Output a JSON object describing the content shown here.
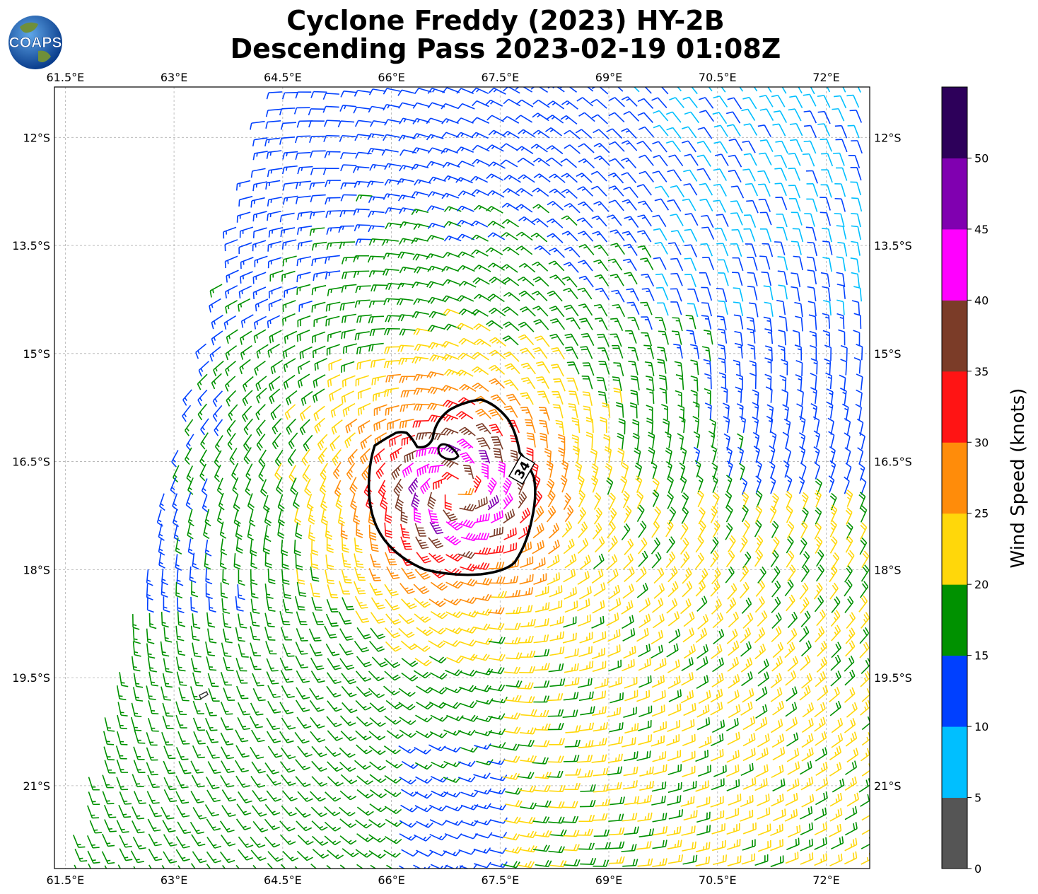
{
  "title": {
    "line1": "Cyclone Freddy (2023) HY-2B",
    "line2": "Descending Pass 2023-02-19 01:08Z"
  },
  "logo": {
    "text": "COAPS",
    "icon": "globe-icon"
  },
  "map": {
    "lon_ticks": [
      "61.5°E",
      "63°E",
      "64.5°E",
      "66°E",
      "67.5°E",
      "69°E",
      "70.5°E",
      "72°E"
    ],
    "lat_ticks": [
      "12°S",
      "13.5°S",
      "15°S",
      "16.5°S",
      "18°S",
      "19.5°S",
      "21°S"
    ],
    "contour_label": "34"
  },
  "colorbar": {
    "label": "Wind Speed (knots)",
    "ticks": [
      "0",
      "5",
      "10",
      "15",
      "20",
      "25",
      "30",
      "35",
      "40",
      "45",
      "50"
    ],
    "colors": [
      "#555555",
      "#00bfff",
      "#0040ff",
      "#009100",
      "#ffd70a",
      "#ff8c0a",
      "#ff1414",
      "#7b3c28",
      "#ff00ff",
      "#8000b0",
      "#2d005a"
    ]
  },
  "chart_data": {
    "type": "wind barbs",
    "lon_range": [
      61.35,
      72.6
    ],
    "lat_range": [
      -22.15,
      -11.3
    ],
    "center": {
      "lon": 66.9,
      "lat": -16.9
    },
    "radius_of_max_wind_deg": 0.6,
    "max_wind_kt": 47,
    "contour_level_kt": 34
  }
}
